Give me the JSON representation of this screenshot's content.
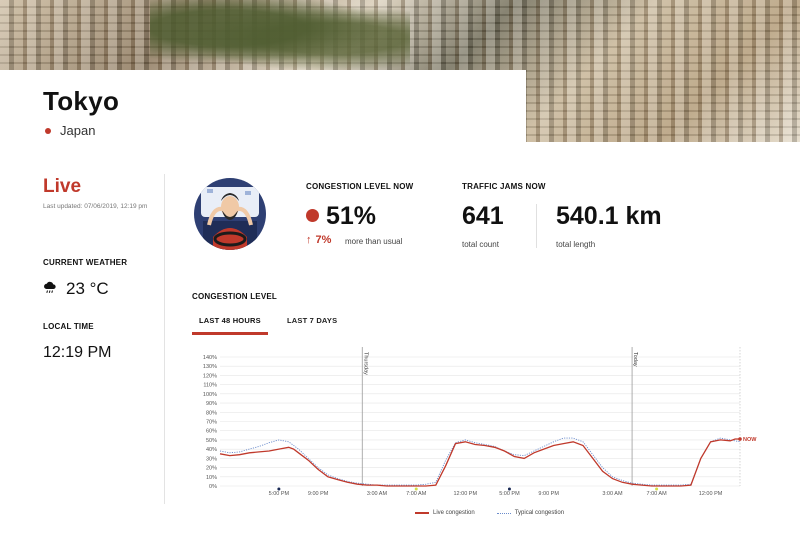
{
  "city": {
    "name": "Tokyo",
    "country": "Japan"
  },
  "status": {
    "live_label": "Live",
    "last_updated": "Last updated: 07/06/2019, 12:19 pm"
  },
  "weather": {
    "heading": "CURRENT WEATHER",
    "icon": "rain-cloud-icon",
    "temperature": "23 °C"
  },
  "local_time": {
    "heading": "LOCAL TIME",
    "value": "12:19 PM"
  },
  "congestion_now": {
    "heading": "CONGESTION LEVEL NOW",
    "value": "51%",
    "delta": "7%",
    "delta_direction": "up",
    "delta_text": "more than usual"
  },
  "traffic_jams_now": {
    "heading": "TRAFFIC JAMS NOW",
    "count": "641",
    "count_label": "total count",
    "length": "540.1 km",
    "length_label": "total length"
  },
  "congestion_level": {
    "heading": "CONGESTION LEVEL",
    "tabs": [
      {
        "label": "LAST 48 HOURS",
        "active": true
      },
      {
        "label": "LAST 7 DAYS",
        "active": false
      }
    ]
  },
  "colors": {
    "accent": "#c0392b",
    "typical": "#6b8ccc",
    "grid": "#e6e6e6"
  },
  "chart_data": {
    "type": "line",
    "y_tick_labels": [
      "140%",
      "130%",
      "120%",
      "110%",
      "100%",
      "90%",
      "80%",
      "70%",
      "60%",
      "50%",
      "40%",
      "30%",
      "20%",
      "10%",
      "0%"
    ],
    "ylim": [
      0,
      140
    ],
    "x_tick_labels": [
      "5:00 PM",
      "9:00 PM",
      "3:00 AM",
      "7:00 AM",
      "12:00 PM",
      "5:00 PM",
      "9:00 PM",
      "3:00 AM",
      "7:00 AM",
      "12:00 PM"
    ],
    "day_markers": [
      "Thursday",
      "Today"
    ],
    "now_label": "NOW",
    "legend": [
      "Live congestion",
      "Typical congestion"
    ],
    "series": [
      {
        "name": "Live congestion",
        "x": [
          0,
          2,
          4,
          6,
          8,
          10,
          12,
          14,
          15,
          16,
          18,
          20,
          22,
          24,
          26,
          28,
          30,
          32,
          34,
          36,
          38,
          40,
          42,
          44,
          46,
          48,
          50,
          52,
          54,
          56,
          58,
          60,
          62,
          64,
          66,
          68,
          70,
          72,
          74,
          76,
          78,
          80,
          82,
          84,
          86,
          88,
          90,
          92,
          94,
          96,
          98,
          100,
          102,
          104,
          105,
          106
        ],
        "values": [
          35,
          33,
          34,
          36,
          37,
          38,
          40,
          42,
          40,
          36,
          28,
          18,
          10,
          7,
          4,
          2,
          1,
          1,
          0,
          0,
          0,
          0,
          0,
          1,
          22,
          46,
          48,
          45,
          44,
          42,
          38,
          32,
          30,
          36,
          40,
          44,
          46,
          48,
          44,
          30,
          16,
          8,
          4,
          2,
          1,
          0,
          0,
          0,
          0,
          1,
          30,
          48,
          50,
          49,
          51,
          51
        ]
      },
      {
        "name": "Typical congestion",
        "x": [
          0,
          2,
          4,
          6,
          8,
          10,
          12,
          14,
          16,
          18,
          20,
          22,
          24,
          26,
          28,
          30,
          32,
          34,
          36,
          38,
          40,
          42,
          44,
          46,
          48,
          50,
          52,
          54,
          56,
          58,
          60,
          62,
          64,
          66,
          68,
          70,
          72,
          74,
          76,
          78,
          80,
          82,
          84,
          86,
          88,
          90,
          92,
          94,
          96,
          98,
          100,
          102,
          104,
          106
        ],
        "values": [
          38,
          36,
          37,
          40,
          43,
          47,
          50,
          48,
          40,
          30,
          20,
          12,
          8,
          5,
          3,
          2,
          1,
          1,
          1,
          1,
          1,
          2,
          4,
          28,
          47,
          50,
          47,
          45,
          43,
          38,
          34,
          33,
          38,
          43,
          48,
          52,
          52,
          48,
          34,
          20,
          10,
          6,
          3,
          2,
          1,
          1,
          1,
          1,
          2,
          30,
          48,
          52,
          50,
          48
        ]
      }
    ],
    "x_tick_positions": [
      12,
      20,
      32,
      40,
      50,
      59,
      67,
      80,
      89,
      100
    ],
    "day_marker_positions": [
      29,
      84
    ],
    "dot_positions": [
      {
        "x": 12,
        "color": "#1a2a55"
      },
      {
        "x": 40,
        "color": "#d4e04a"
      },
      {
        "x": 59,
        "color": "#1a2a55"
      },
      {
        "x": 89,
        "color": "#d4e04a"
      }
    ],
    "x_range": [
      0,
      106
    ]
  }
}
